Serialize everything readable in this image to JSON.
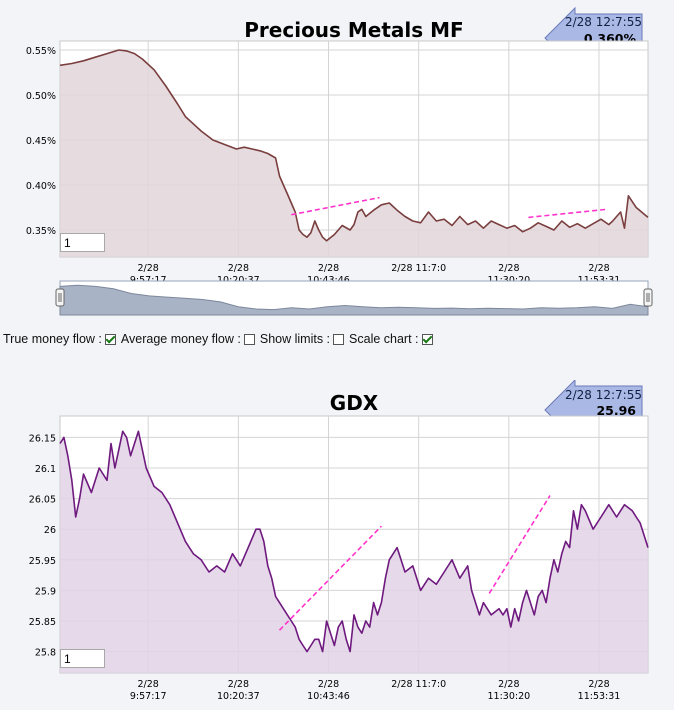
{
  "chart_data": [
    {
      "type": "area",
      "title": "Precious Metals MF",
      "ylim": [
        0.32,
        0.56
      ],
      "yticks": [
        0.35,
        0.4,
        0.45,
        0.5,
        0.55
      ],
      "ytick_labels": [
        "0.35%",
        "0.40%",
        "0.45%",
        "0.50%",
        "0.55%"
      ],
      "x_tick_labels": [
        [
          "2/28",
          "9:57:17"
        ],
        [
          "2/28",
          "10:20:37"
        ],
        [
          "2/28",
          "10:43:46"
        ],
        [
          "2/28",
          "11:7:0"
        ],
        [
          "2/28",
          "11:30:20"
        ],
        [
          "2/28",
          "11:53:31"
        ]
      ],
      "x_range_minutes": [
        0,
        150
      ],
      "x_tick_minutes": [
        22.5,
        45.5,
        68.5,
        91.5,
        114.5,
        137.5
      ],
      "grid": true,
      "line_color": "#7a3e3e",
      "fill_color": "#e2d6da",
      "trend_color": "#ff33cc",
      "series": [
        {
          "x": [
            0,
            3,
            6,
            9,
            12,
            15,
            17,
            19,
            21,
            24,
            27,
            30,
            32,
            34,
            36,
            39,
            42,
            45,
            47,
            49,
            51,
            53,
            55,
            56,
            57,
            58,
            59,
            60,
            61,
            62,
            63,
            64,
            65,
            66,
            67,
            68,
            70,
            72,
            74,
            75,
            76,
            77,
            78,
            80,
            82,
            84,
            86,
            88,
            90,
            92,
            94,
            96,
            98,
            100,
            102,
            104,
            106,
            108,
            110,
            112,
            114,
            116,
            118,
            120,
            122,
            124,
            126,
            128,
            130,
            132,
            134,
            136,
            138,
            140,
            141,
            142,
            143,
            144,
            145,
            147,
            150
          ],
          "y": [
            0.533,
            0.535,
            0.538,
            0.542,
            0.546,
            0.55,
            0.549,
            0.546,
            0.54,
            0.528,
            0.51,
            0.49,
            0.476,
            0.468,
            0.46,
            0.45,
            0.445,
            0.44,
            0.442,
            0.44,
            0.438,
            0.435,
            0.43,
            0.41,
            0.4,
            0.39,
            0.38,
            0.37,
            0.35,
            0.345,
            0.342,
            0.347,
            0.36,
            0.35,
            0.342,
            0.338,
            0.345,
            0.355,
            0.35,
            0.356,
            0.37,
            0.373,
            0.365,
            0.372,
            0.378,
            0.38,
            0.372,
            0.365,
            0.36,
            0.358,
            0.37,
            0.36,
            0.362,
            0.355,
            0.365,
            0.356,
            0.36,
            0.352,
            0.36,
            0.356,
            0.352,
            0.355,
            0.348,
            0.352,
            0.358,
            0.354,
            0.35,
            0.36,
            0.353,
            0.357,
            0.352,
            0.357,
            0.362,
            0.356,
            0.36,
            0.365,
            0.37,
            0.352,
            0.388,
            0.375,
            0.364
          ]
        }
      ],
      "trendlines": [
        {
          "x": [
            59,
            81.5
          ],
          "y": [
            0.367,
            0.386
          ]
        },
        {
          "x": [
            119.5,
            139.5
          ],
          "y": [
            0.364,
            0.373
          ]
        }
      ],
      "badge_time": "2/28 12:7:55",
      "badge_value": "0.360%",
      "zoom_value": "1"
    },
    {
      "type": "area",
      "title": "GDX",
      "ylim": [
        25.765,
        26.185
      ],
      "yticks": [
        25.8,
        25.85,
        25.9,
        25.95,
        26.0,
        26.05,
        26.1,
        26.15
      ],
      "ytick_labels": [
        "25.8",
        "25.85",
        "25.9",
        "25.95",
        "26",
        "26.05",
        "26.1",
        "26.15"
      ],
      "x_tick_labels": [
        [
          "2/28",
          "9:57:17"
        ],
        [
          "2/28",
          "10:20:37"
        ],
        [
          "2/28",
          "10:43:46"
        ],
        [
          "2/28",
          "11:7:0"
        ],
        [
          "2/28",
          "11:30:20"
        ],
        [
          "2/28",
          "11:53:31"
        ]
      ],
      "x_range_minutes": [
        0,
        150
      ],
      "x_tick_minutes": [
        22.5,
        45.5,
        68.5,
        91.5,
        114.5,
        137.5
      ],
      "grid": true,
      "line_color": "#6e1a7e",
      "fill_color": "#e2d2e6",
      "trend_color": "#ff33cc",
      "series": [
        {
          "x": [
            0,
            1,
            2,
            3,
            4,
            5,
            6,
            8,
            10,
            12,
            13,
            14,
            15,
            16,
            17,
            18,
            19,
            20,
            22,
            24,
            26,
            28,
            30,
            32,
            34,
            36,
            38,
            40,
            42,
            44,
            46,
            48,
            50,
            51,
            52,
            53,
            54,
            55,
            56,
            57,
            58,
            59,
            60,
            61,
            62,
            63,
            64,
            65,
            66,
            67,
            68,
            69,
            70,
            71,
            72,
            73,
            74,
            75,
            76,
            77,
            78,
            79,
            80,
            81,
            82,
            83,
            84,
            86,
            88,
            90,
            92,
            94,
            96,
            98,
            100,
            102,
            104,
            105,
            106,
            107,
            108,
            110,
            112,
            113,
            114,
            115,
            116,
            117,
            118,
            119,
            120,
            121,
            122,
            123,
            124,
            125,
            126,
            127,
            128,
            129,
            130,
            131,
            132,
            133,
            134,
            136,
            138,
            140,
            142,
            144,
            146,
            147,
            148,
            150
          ],
          "y": [
            26.14,
            26.15,
            26.12,
            26.08,
            26.02,
            26.05,
            26.09,
            26.06,
            26.1,
            26.08,
            26.14,
            26.1,
            26.13,
            26.16,
            26.15,
            26.12,
            26.14,
            26.16,
            26.1,
            26.07,
            26.06,
            26.04,
            26.01,
            25.98,
            25.96,
            25.95,
            25.93,
            25.94,
            25.93,
            25.96,
            25.94,
            25.97,
            26.0,
            26.0,
            25.98,
            25.94,
            25.92,
            25.89,
            25.88,
            25.87,
            25.86,
            25.85,
            25.84,
            25.82,
            25.81,
            25.8,
            25.81,
            25.82,
            25.82,
            25.8,
            25.85,
            25.83,
            25.81,
            25.84,
            25.85,
            25.82,
            25.8,
            25.86,
            25.84,
            25.83,
            25.85,
            25.84,
            25.88,
            25.86,
            25.88,
            25.92,
            25.95,
            25.97,
            25.93,
            25.94,
            25.9,
            25.92,
            25.91,
            25.93,
            25.95,
            25.92,
            25.94,
            25.9,
            25.88,
            25.86,
            25.88,
            25.86,
            25.87,
            25.86,
            25.87,
            25.84,
            25.87,
            25.85,
            25.88,
            25.9,
            25.88,
            25.86,
            25.89,
            25.9,
            25.88,
            25.92,
            25.95,
            25.93,
            25.96,
            25.98,
            25.97,
            26.03,
            26.0,
            26.04,
            26.03,
            26.0,
            26.02,
            26.04,
            26.02,
            26.04,
            26.03,
            26.02,
            26.01,
            25.97
          ]
        }
      ],
      "trendlines": [
        {
          "x": [
            56,
            82
          ],
          "y": [
            25.835,
            26.005
          ]
        },
        {
          "x": [
            109.5,
            125
          ],
          "y": [
            25.895,
            26.055
          ]
        }
      ],
      "badge_time": "2/28 12:7:55",
      "badge_value": "25.96",
      "zoom_value": "1"
    }
  ],
  "controls": {
    "true_money_flow": {
      "label": "True money flow :",
      "checked": true
    },
    "average_money_flow": {
      "label": "Average money flow :",
      "checked": false
    },
    "show_limits": {
      "label": "Show limits :",
      "checked": false
    },
    "scale_chart": {
      "label": "Scale chart :",
      "checked": true
    }
  },
  "navigator": {
    "fill_color": "#a9b3c6",
    "values": [
      0.54,
      0.55,
      0.54,
      0.52,
      0.48,
      0.46,
      0.45,
      0.44,
      0.43,
      0.41,
      0.37,
      0.35,
      0.345,
      0.36,
      0.35,
      0.37,
      0.38,
      0.37,
      0.36,
      0.365,
      0.36,
      0.355,
      0.358,
      0.352,
      0.356,
      0.354,
      0.35,
      0.36,
      0.356,
      0.36,
      0.37,
      0.355,
      0.39,
      0.37
    ]
  }
}
